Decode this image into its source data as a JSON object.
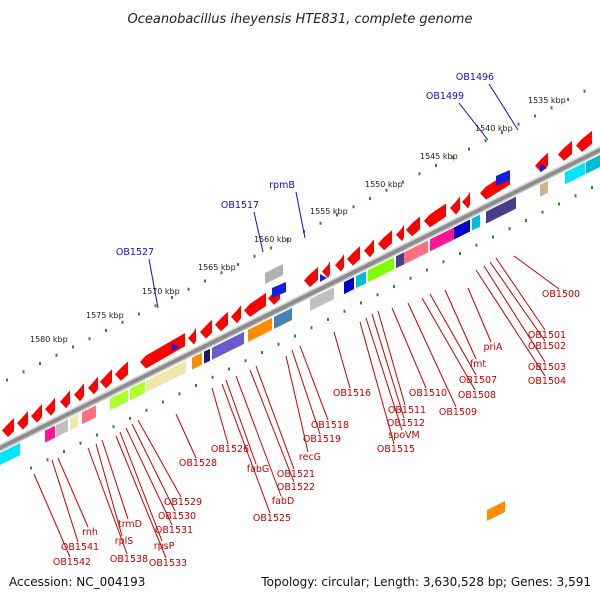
{
  "title": "Oceanobacillus iheyensis HTE831, complete genome",
  "footer": {
    "accession": "Accession: NC_004193",
    "summary": "Topology: circular; Length: 3,630,528 bp; Genes: 3,591"
  },
  "kbp_labels": [
    "1535 kbp",
    "1540 kbp",
    "1545 kbp",
    "1550 kbp",
    "1555 kbp",
    "1560 kbp",
    "1565 kbp",
    "1570 kbp",
    "1575 kbp",
    "1580 kbp"
  ],
  "upper_labels": [
    "OB1496",
    "OB1499",
    "rpmB",
    "OB1517",
    "OB1527"
  ],
  "lower_labels": [
    "OB1500",
    "OB1501",
    "OB1502",
    "OB1503",
    "OB1504",
    "priA",
    "fmt",
    "OB1507",
    "OB1508",
    "OB1509",
    "OB1510",
    "OB1511",
    "OB1512",
    "spoVM",
    "OB1515",
    "OB1516",
    "OB1518",
    "OB1519",
    "recG",
    "OB1521",
    "OB1522",
    "fabD",
    "fabG",
    "OB1525",
    "OB1526",
    "OB1528",
    "OB1529",
    "OB1530",
    "OB1531",
    "rpsP",
    "OB1533",
    "trmD",
    "rplS",
    "OB1538",
    "rnh",
    "OB1541",
    "OB1542"
  ],
  "colors": {
    "backbone": "#8c8c8c",
    "tick_dots": "#2e8b2e",
    "gene_red": "#ff0000",
    "label_blue": "#1010c8",
    "label_red": "#c80000",
    "palette": [
      "#00e5ff",
      "#00bcd4",
      "#ff1493",
      "#c0c0c0",
      "#adff2f",
      "#eee8aa",
      "#191970",
      "#6a5acd",
      "#ff8c00",
      "#4682b4",
      "#ff6f7d",
      "#483d8b",
      "#7fff00",
      "#0000cd",
      "#d2b48c"
    ]
  }
}
